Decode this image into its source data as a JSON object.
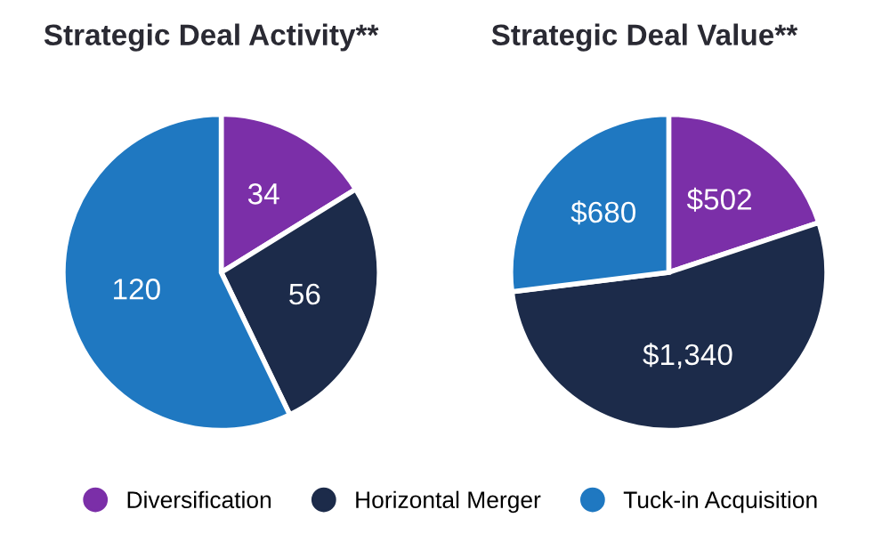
{
  "chart_data": [
    {
      "type": "pie",
      "title": "Strategic Deal Activity**",
      "categories": [
        "Diversification",
        "Horizontal Merger",
        "Tuck-in Acquisition"
      ],
      "values": [
        34,
        56,
        120
      ],
      "colors": [
        "#7b2fa8",
        "#1c2b4a",
        "#1f78c1"
      ],
      "data_labels": true,
      "legend": "bottom"
    },
    {
      "type": "pie",
      "title": "Strategic Deal Value**",
      "categories": [
        null,
        null,
        null
      ],
      "values": [
        502,
        1340,
        680
      ],
      "colors": [
        "#7b2fa8",
        "#1c2b4a",
        "#1f78c1"
      ],
      "value_labels": [
        "$502",
        "$1,340",
        "$680"
      ]
    }
  ]
}
